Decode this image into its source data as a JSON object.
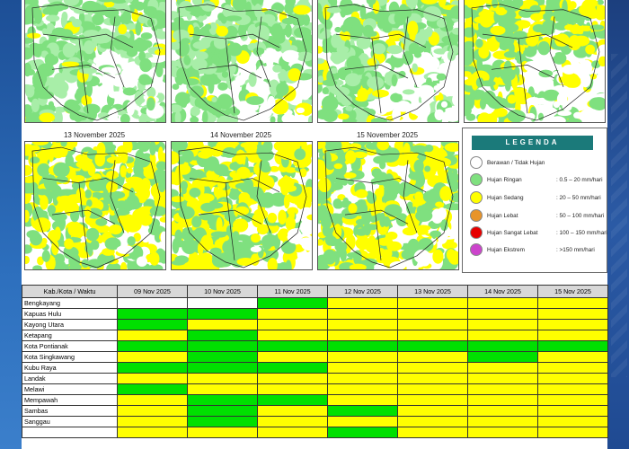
{
  "dates": [
    "13 November 2025",
    "14 November 2025",
    "15 November 2025"
  ],
  "legend": {
    "title": "LEGENDA",
    "items": [
      {
        "label": "Berawan / Tidak Hujan",
        "value": "",
        "color": "#ffffff"
      },
      {
        "label": "Hujan Ringan",
        "value": ": 0.5 – 20 mm/hari",
        "color": "#7fe07f"
      },
      {
        "label": "Hujan Sedang",
        "value": ": 20 – 50 mm/hari",
        "color": "#ffff00"
      },
      {
        "label": "Hujan Lebat",
        "value": ": 50 – 100 mm/hari",
        "color": "#e8942a"
      },
      {
        "label": "Hujan Sangat Lebat",
        "value": ": 100 – 150 mm/hari",
        "color": "#e60000"
      },
      {
        "label": "Hujan Ekstrem",
        "value": ": >150 mm/hari",
        "color": "#cc44cc"
      }
    ]
  },
  "table": {
    "header": [
      "Kab./Kota / Waktu",
      "09 Nov 2025",
      "10 Nov 2025",
      "11 Nov 2025",
      "12 Nov 2025",
      "13 Nov 2025",
      "14 Nov 2025",
      "15 Nov 2025"
    ],
    "rows": [
      {
        "name": "Bengkayang",
        "cells": [
          "w",
          "w",
          "g",
          "y",
          "y",
          "y",
          "y"
        ]
      },
      {
        "name": "Kapuas Hulu",
        "cells": [
          "g",
          "g",
          "y",
          "y",
          "y",
          "y",
          "y"
        ]
      },
      {
        "name": "Kayong Utara",
        "cells": [
          "g",
          "y",
          "y",
          "y",
          "y",
          "y",
          "y"
        ]
      },
      {
        "name": "Ketapang",
        "cells": [
          "y",
          "g",
          "y",
          "y",
          "y",
          "y",
          "y"
        ]
      },
      {
        "name": "Kota Pontianak",
        "cells": [
          "g",
          "g",
          "g",
          "g",
          "g",
          "g",
          "g"
        ]
      },
      {
        "name": "Kota Singkawang",
        "cells": [
          "y",
          "g",
          "y",
          "y",
          "y",
          "g",
          "y"
        ]
      },
      {
        "name": "Kubu Raya",
        "cells": [
          "g",
          "g",
          "g",
          "y",
          "y",
          "y",
          "y"
        ]
      },
      {
        "name": "Landak",
        "cells": [
          "y",
          "y",
          "y",
          "y",
          "y",
          "y",
          "y"
        ]
      },
      {
        "name": "Melawi",
        "cells": [
          "g",
          "y",
          "y",
          "y",
          "y",
          "y",
          "y"
        ]
      },
      {
        "name": "Mempawah",
        "cells": [
          "y",
          "g",
          "g",
          "y",
          "y",
          "y",
          "y"
        ]
      },
      {
        "name": "Sambas",
        "cells": [
          "y",
          "g",
          "y",
          "g",
          "y",
          "y",
          "y"
        ]
      },
      {
        "name": "Sanggau",
        "cells": [
          "y",
          "g",
          "y",
          "y",
          "y",
          "y",
          "y"
        ]
      },
      {
        "name": "",
        "cells": [
          "y",
          "y",
          "y",
          "g",
          "y",
          "y",
          "y"
        ]
      }
    ]
  }
}
